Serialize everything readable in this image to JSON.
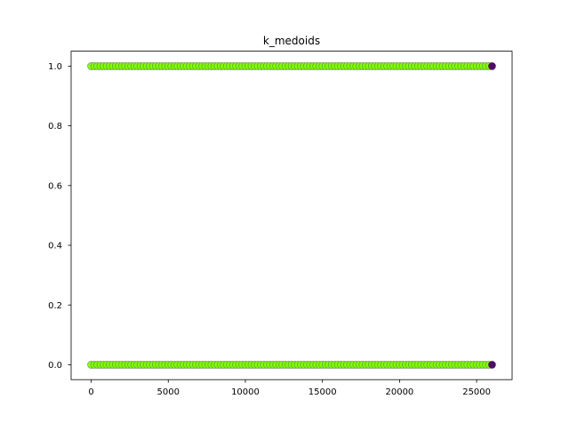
{
  "chart_data": {
    "type": "scatter",
    "title": "k_medoids",
    "xlabel": "",
    "ylabel": "",
    "xlim": [
      -1300,
      27300
    ],
    "ylim": [
      -0.05,
      1.05
    ],
    "xticks": [
      0,
      5000,
      10000,
      15000,
      20000,
      25000
    ],
    "xtick_labels": [
      "0",
      "5000",
      "10000",
      "15000",
      "20000",
      "25000"
    ],
    "yticks": [
      0.0,
      0.2,
      0.4,
      0.6,
      0.8,
      1.0
    ],
    "ytick_labels": [
      "0.0",
      "0.2",
      "0.4",
      "0.6",
      "0.8",
      "1.0"
    ],
    "grid": false,
    "legend": "none",
    "x_range": [
      0,
      26000
    ],
    "y_levels": [
      0,
      1
    ],
    "point_spacing": 200,
    "colors": {
      "cluster_a": "#7fff00",
      "cluster_a_edge": "#5a8a3a",
      "cluster_b": "#4b1060",
      "axis": "#000000"
    },
    "series": [
      {
        "color": "#7fff00",
        "points": "dense band of points at y=0 and y=1 for x from 0 to ~25900"
      },
      {
        "color": "#4b1060",
        "points": [
          [
            26000,
            0
          ],
          [
            26000,
            1
          ]
        ]
      }
    ]
  }
}
